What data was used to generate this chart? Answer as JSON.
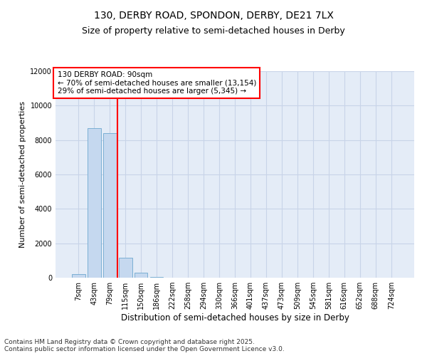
{
  "title": "130, DERBY ROAD, SPONDON, DERBY, DE21 7LX",
  "subtitle": "Size of property relative to semi-detached houses in Derby",
  "xlabel": "Distribution of semi-detached houses by size in Derby",
  "ylabel": "Number of semi-detached properties",
  "bin_labels": [
    "7sqm",
    "43sqm",
    "79sqm",
    "115sqm",
    "150sqm",
    "186sqm",
    "222sqm",
    "258sqm",
    "294sqm",
    "330sqm",
    "366sqm",
    "401sqm",
    "437sqm",
    "473sqm",
    "509sqm",
    "545sqm",
    "581sqm",
    "616sqm",
    "652sqm",
    "688sqm",
    "724sqm"
  ],
  "bar_values": [
    200,
    8700,
    8400,
    1150,
    300,
    60,
    10,
    0,
    0,
    0,
    0,
    0,
    0,
    0,
    0,
    0,
    0,
    0,
    0,
    0,
    0
  ],
  "bar_color": "#c5d8ef",
  "bar_edge_color": "#7bafd4",
  "grid_color": "#c8d4e8",
  "background_color": "#e4ecf7",
  "ylim": [
    0,
    12000
  ],
  "red_line_x": 2.5,
  "annotation_text": "130 DERBY ROAD: 90sqm\n← 70% of semi-detached houses are smaller (13,154)\n29% of semi-detached houses are larger (5,345) →",
  "footer_text": "Contains HM Land Registry data © Crown copyright and database right 2025.\nContains public sector information licensed under the Open Government Licence v3.0.",
  "title_fontsize": 10,
  "subtitle_fontsize": 9,
  "annotation_fontsize": 7.5,
  "ylabel_fontsize": 8,
  "xlabel_fontsize": 8.5,
  "footer_fontsize": 6.5,
  "tick_fontsize": 7
}
